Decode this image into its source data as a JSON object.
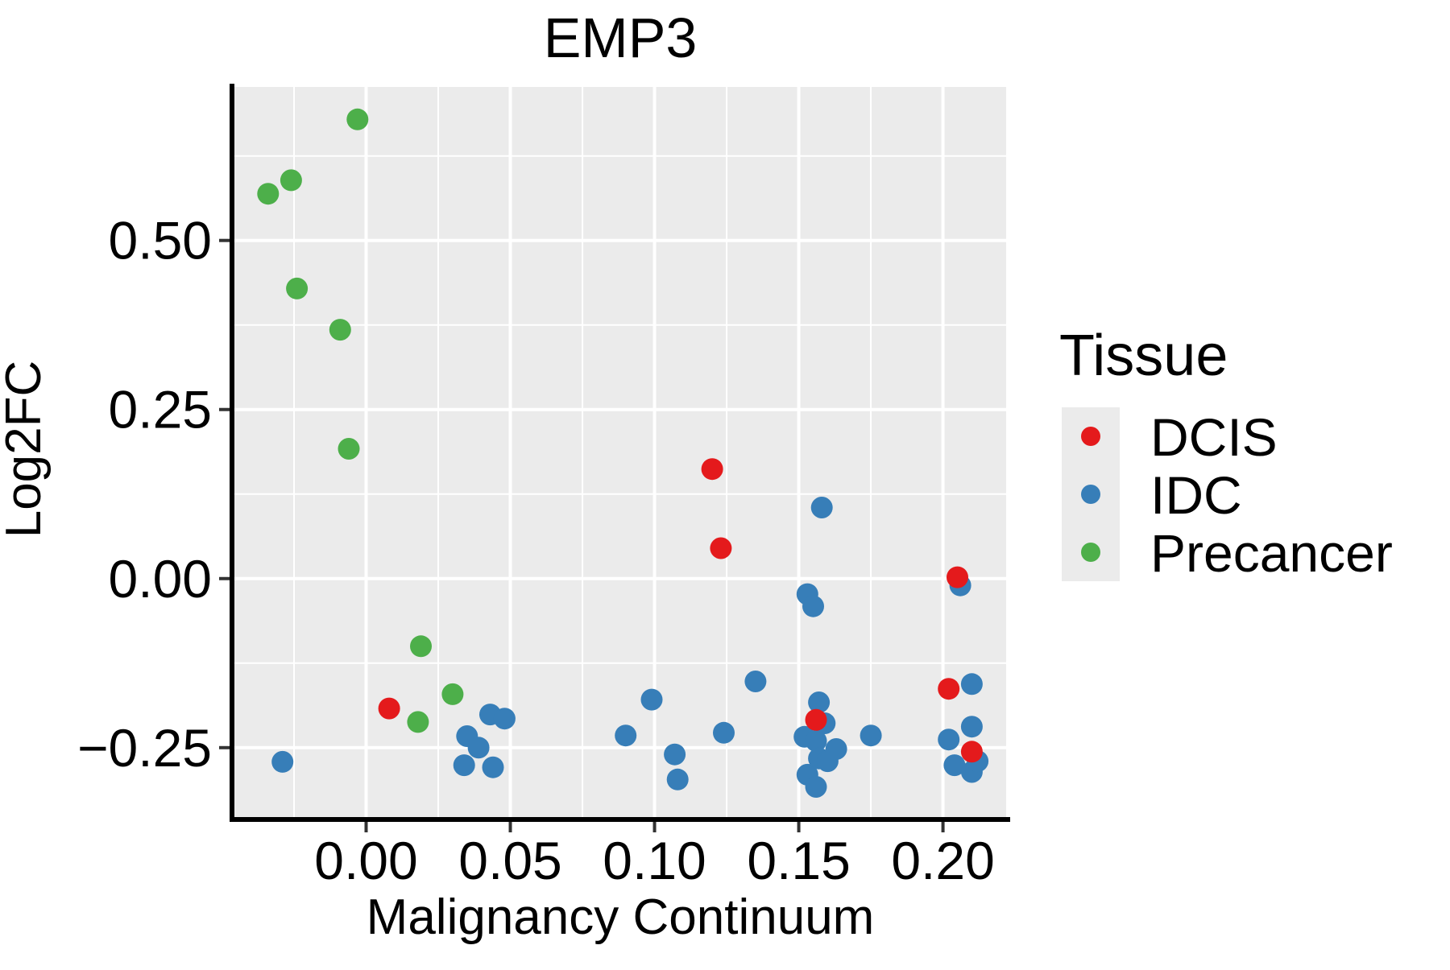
{
  "style": {
    "panel_bg": "#EBEBEB",
    "grid_color": "#FFFFFF",
    "spine_color": "#000000",
    "tick_color": "#333333",
    "text_color": "#000000",
    "legend_key_bg": "#EBEBEB",
    "point_radius": 13.5,
    "legend_dot_radius": 12
  },
  "chart_data": {
    "type": "scatter",
    "title": "EMP3",
    "xlabel": "Malignancy Continuum",
    "ylabel": "Log2FC",
    "legend_title": "Tissue",
    "legend_position": "right",
    "grid": true,
    "xlim": [
      -0.0465,
      0.2219
    ],
    "ylim": [
      -0.355,
      0.727
    ],
    "x_ticks": [
      {
        "value": 0.0,
        "label": "0.00"
      },
      {
        "value": 0.05,
        "label": "0.05"
      },
      {
        "value": 0.1,
        "label": "0.10"
      },
      {
        "value": 0.15,
        "label": "0.15"
      },
      {
        "value": 0.2,
        "label": "0.20"
      }
    ],
    "y_ticks": [
      {
        "value": 0.5,
        "label": "0.50"
      },
      {
        "value": 0.25,
        "label": "0.25"
      },
      {
        "value": 0.0,
        "label": "0.00"
      },
      {
        "value": -0.25,
        "label": "−0.25"
      }
    ],
    "x_minor_ticks": [
      -0.025,
      0.025,
      0.075,
      0.125,
      0.175
    ],
    "y_minor_ticks": [
      0.625,
      0.375,
      0.125,
      -0.125
    ],
    "series": [
      {
        "name": "DCIS",
        "color": "#E41A1C",
        "points": [
          [
            0.008,
            -0.192
          ],
          [
            0.12,
            0.162
          ],
          [
            0.123,
            0.045
          ],
          [
            0.156,
            -0.209
          ],
          [
            0.202,
            -0.163
          ],
          [
            0.205,
            0.002
          ],
          [
            0.21,
            -0.256
          ]
        ]
      },
      {
        "name": "IDC",
        "color": "#377EB8",
        "points": [
          [
            -0.029,
            -0.271
          ],
          [
            0.034,
            -0.276
          ],
          [
            0.035,
            -0.233
          ],
          [
            0.039,
            -0.25
          ],
          [
            0.043,
            -0.201
          ],
          [
            0.044,
            -0.279
          ],
          [
            0.048,
            -0.207
          ],
          [
            0.09,
            -0.232
          ],
          [
            0.099,
            -0.179
          ],
          [
            0.107,
            -0.26
          ],
          [
            0.108,
            -0.297
          ],
          [
            0.124,
            -0.228
          ],
          [
            0.135,
            -0.152
          ],
          [
            0.153,
            -0.023
          ],
          [
            0.155,
            -0.041
          ],
          [
            0.158,
            0.105
          ],
          [
            0.152,
            -0.234
          ],
          [
            0.153,
            -0.29
          ],
          [
            0.156,
            -0.24
          ],
          [
            0.156,
            -0.308
          ],
          [
            0.157,
            -0.183
          ],
          [
            0.157,
            -0.266
          ],
          [
            0.159,
            -0.214
          ],
          [
            0.16,
            -0.27
          ],
          [
            0.163,
            -0.252
          ],
          [
            0.175,
            -0.232
          ],
          [
            0.202,
            -0.238
          ],
          [
            0.204,
            -0.276
          ],
          [
            0.206,
            -0.01
          ],
          [
            0.21,
            -0.156
          ],
          [
            0.21,
            -0.219
          ],
          [
            0.21,
            -0.286
          ],
          [
            0.212,
            -0.27
          ]
        ]
      },
      {
        "name": "Precancer",
        "color": "#4DAF4A",
        "points": [
          [
            -0.034,
            0.569
          ],
          [
            -0.026,
            0.589
          ],
          [
            -0.024,
            0.429
          ],
          [
            -0.009,
            0.368
          ],
          [
            -0.006,
            0.192
          ],
          [
            -0.003,
            0.679
          ],
          [
            0.018,
            -0.212
          ],
          [
            0.019,
            -0.1
          ],
          [
            0.03,
            -0.171
          ]
        ]
      }
    ]
  }
}
